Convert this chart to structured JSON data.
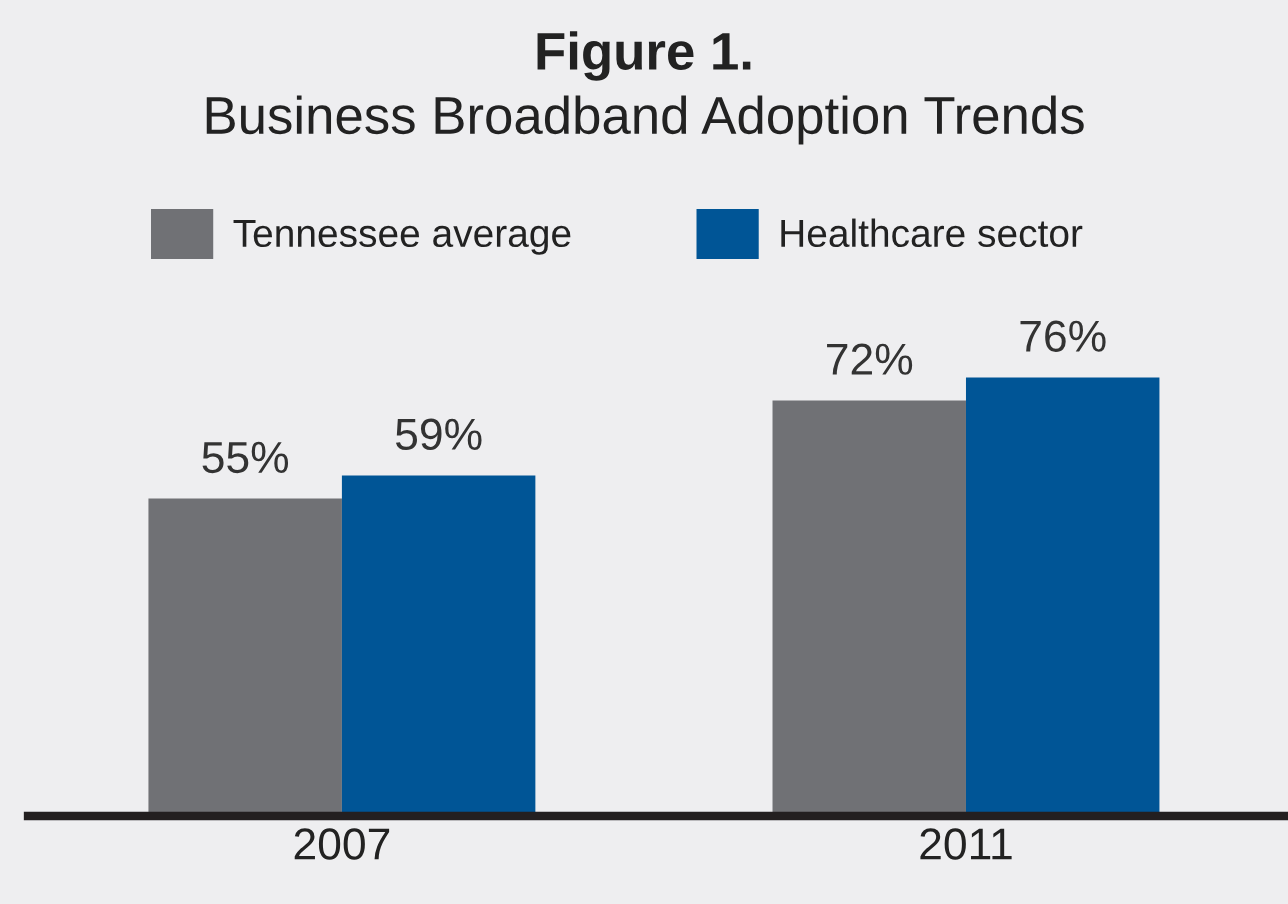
{
  "chart_data": {
    "type": "bar",
    "title": "Figure 1.",
    "subtitle": "Business Broadband Adoption Trends",
    "categories": [
      "2007",
      "2011"
    ],
    "series": [
      {
        "name": "Tennessee average",
        "color": "#707175",
        "values": [
          55,
          72
        ],
        "value_labels": [
          "55%",
          "72%"
        ]
      },
      {
        "name": "Healthcare sector",
        "color": "#005596",
        "values": [
          59,
          76
        ],
        "value_labels": [
          "59%",
          "76%"
        ]
      }
    ],
    "tick_labels": "x",
    "legend": "top left",
    "grid": false
  }
}
